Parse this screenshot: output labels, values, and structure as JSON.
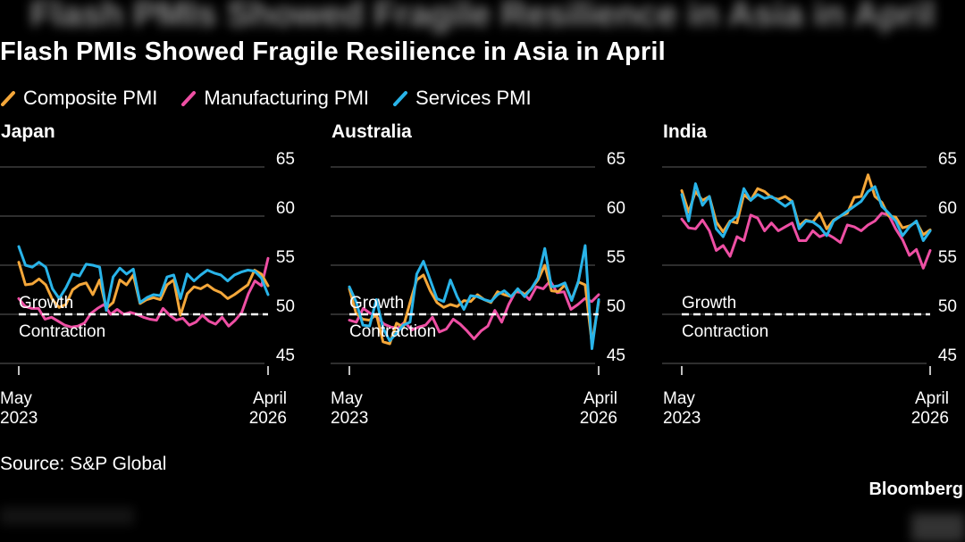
{
  "header": {
    "blurred_heading": "Flash PMIs Showed Fragile Resilience in Asia in April",
    "title": "Flash PMIs Showed Fragile Resilience in Asia in April"
  },
  "legend": [
    {
      "name": "Composite PMI",
      "color": "#f4a73a",
      "icon": "slash-line-icon"
    },
    {
      "name": "Manufacturing PMI",
      "color": "#ee4fa4",
      "icon": "slash-line-icon"
    },
    {
      "name": "Services PMI",
      "color": "#29b4e9",
      "icon": "slash-line-icon"
    }
  ],
  "footer": {
    "source": "Source: S&P Global",
    "brand": "Bloomberg"
  },
  "chart_data": [
    {
      "type": "line",
      "title": "Japan",
      "ylim": [
        44,
        65
      ],
      "yticks": [
        65,
        60,
        55,
        50,
        45
      ],
      "x_labels": {
        "start": [
          "May",
          "2023"
        ],
        "end": [
          "April",
          "2026"
        ]
      },
      "threshold": {
        "value": 50,
        "above_label": "Growth",
        "below_label": "Contraction"
      },
      "series": [
        {
          "name": "Composite PMI",
          "color": "#f4a73a",
          "values": [
            54.3,
            52.0,
            52.1,
            52.6,
            52.0,
            50.5,
            49.7,
            50.0,
            51.5,
            52.0,
            52.2,
            51.0,
            52.5,
            49.6,
            50.2,
            52.5,
            52.0,
            53.0,
            50.1,
            50.5,
            50.7,
            50.5,
            52.0,
            52.5,
            48.9,
            51.1,
            51.8,
            51.6,
            52.0,
            51.5,
            51.2,
            50.6,
            51.0,
            51.5,
            52.0,
            53.5,
            53.1,
            51.9
          ]
        },
        {
          "name": "Manufacturing PMI",
          "color": "#ee4fa4",
          "values": [
            50.6,
            49.8,
            49.6,
            49.6,
            48.5,
            48.7,
            48.3,
            47.9,
            47.7,
            47.8,
            48.1,
            49.1,
            49.6,
            50.0,
            49.0,
            49.5,
            49.0,
            49.2,
            49.0,
            48.7,
            48.5,
            48.4,
            49.6,
            48.9,
            48.4,
            48.6,
            47.9,
            48.2,
            48.9,
            48.3,
            48.0,
            48.7,
            47.8,
            48.4,
            49.2,
            51.1,
            52.4,
            51.9,
            54.7
          ]
        },
        {
          "name": "Services PMI",
          "color": "#29b4e9",
          "values": [
            55.9,
            54.0,
            53.8,
            54.3,
            53.8,
            51.6,
            50.6,
            51.7,
            53.1,
            52.9,
            54.1,
            54.0,
            53.8,
            49.4,
            52.8,
            53.7,
            53.1,
            53.6,
            50.2,
            50.7,
            51.0,
            50.9,
            52.8,
            53.0,
            50.6,
            53.1,
            52.4,
            53.0,
            53.5,
            53.2,
            53.0,
            52.4,
            53.0,
            53.3,
            53.5,
            53.4,
            52.7,
            51.0
          ]
        }
      ]
    },
    {
      "type": "line",
      "title": "Australia",
      "ylim": [
        44,
        65
      ],
      "yticks": [
        65,
        60,
        55,
        50,
        45
      ],
      "x_labels": {
        "start": [
          "May",
          "2023"
        ],
        "end": [
          "April",
          "2026"
        ]
      },
      "threshold": {
        "value": 50,
        "above_label": "Growth",
        "below_label": "Contraction"
      },
      "series": [
        {
          "name": "Composite PMI",
          "color": "#f4a73a",
          "values": [
            51.6,
            49.1,
            48.5,
            48.4,
            49.0,
            46.2,
            46.0,
            48.1,
            47.7,
            50.2,
            52.5,
            53.0,
            51.4,
            50.2,
            49.7,
            50.0,
            49.8,
            50.4,
            50.3,
            51.0,
            50.5,
            50.2,
            51.3,
            51.0,
            50.8,
            51.5,
            51.0,
            51.6,
            52.5,
            54.0,
            51.4,
            51.3,
            52.0,
            50.5,
            52.3,
            52.0,
            46.0,
            50.3
          ]
        },
        {
          "name": "Manufacturing PMI",
          "color": "#ee4fa4",
          "values": [
            48.4,
            48.2,
            49.6,
            49.1,
            48.7,
            48.0,
            47.7,
            47.6,
            48.2,
            47.4,
            47.7,
            47.9,
            48.7,
            47.2,
            47.5,
            48.5,
            48.0,
            47.3,
            46.5,
            47.3,
            47.8,
            49.4,
            48.2,
            50.0,
            51.3,
            51.2,
            50.5,
            51.8,
            51.6,
            52.4,
            51.2,
            51.3,
            49.5,
            50.0,
            50.6,
            50.3,
            51.0
          ]
        },
        {
          "name": "Services PMI",
          "color": "#29b4e9",
          "values": [
            51.8,
            50.3,
            47.9,
            47.8,
            50.5,
            47.6,
            46.3,
            47.1,
            47.9,
            48.2,
            53.1,
            54.4,
            52.5,
            50.6,
            50.3,
            52.5,
            50.8,
            49.5,
            50.9,
            50.8,
            50.5,
            50.3,
            51.0,
            51.4,
            50.8,
            51.6,
            50.8,
            51.6,
            52.7,
            55.7,
            51.8,
            51.9,
            52.2,
            50.4,
            52.4,
            56.0,
            45.5,
            50.5
          ]
        }
      ]
    },
    {
      "type": "line",
      "title": "India",
      "ylim": [
        44,
        65
      ],
      "yticks": [
        65,
        60,
        55,
        50,
        45
      ],
      "x_labels": {
        "start": [
          "May",
          "2023"
        ],
        "end": [
          "April",
          "2026"
        ]
      },
      "threshold": {
        "value": 50,
        "above_label": "Growth",
        "below_label": "Contraction"
      },
      "series": [
        {
          "name": "Composite PMI",
          "color": "#f4a73a",
          "values": [
            61.6,
            59.4,
            61.5,
            60.6,
            61.0,
            58.4,
            57.4,
            58.5,
            58.3,
            61.2,
            60.6,
            61.8,
            61.5,
            60.9,
            60.7,
            61.0,
            60.5,
            58.0,
            58.6,
            58.4,
            59.3,
            57.7,
            58.6,
            59.0,
            59.3,
            60.9,
            61.0,
            63.2,
            61.0,
            60.4,
            59.0,
            58.9,
            57.8,
            58.0,
            58.4,
            57.1,
            57.6
          ]
        },
        {
          "name": "Manufacturing PMI",
          "color": "#ee4fa4",
          "values": [
            58.7,
            57.8,
            57.7,
            58.6,
            57.5,
            55.5,
            56.0,
            54.9,
            56.9,
            56.5,
            59.1,
            58.8,
            57.5,
            58.3,
            57.5,
            57.9,
            58.3,
            56.5,
            56.5,
            57.5,
            56.9,
            57.2,
            56.8,
            56.3,
            58.1,
            57.9,
            57.5,
            58.1,
            58.5,
            59.3,
            59.1,
            57.7,
            56.6,
            55.0,
            55.6,
            53.7,
            55.5
          ]
        },
        {
          "name": "Services PMI",
          "color": "#29b4e9",
          "values": [
            61.2,
            58.5,
            62.3,
            60.1,
            61.0,
            57.7,
            56.9,
            58.4,
            59.0,
            61.8,
            60.6,
            61.2,
            60.8,
            61.0,
            60.5,
            60.0,
            60.5,
            57.7,
            58.5,
            58.4,
            57.9,
            57.0,
            58.5,
            59.0,
            59.5,
            60.0,
            60.5,
            61.5,
            62.0,
            60.0,
            59.3,
            58.5,
            57.0,
            57.9,
            58.5,
            56.5,
            57.5
          ]
        }
      ]
    }
  ]
}
